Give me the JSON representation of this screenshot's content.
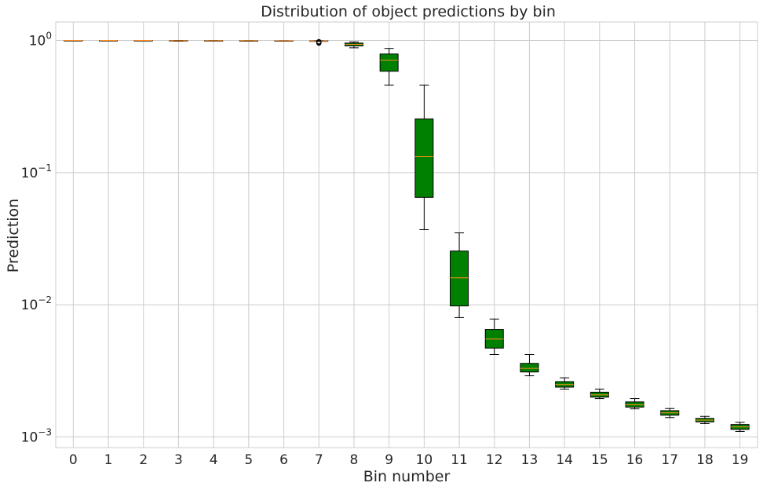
{
  "chart_data": {
    "type": "box",
    "title": "Distribution of object predictions by bin",
    "xlabel": "Bin number",
    "ylabel": "Prediction",
    "yscale": "log",
    "ylim": [
      0.00083,
      1.38
    ],
    "grid": true,
    "box_color": "#008000",
    "median_color": "#ff8c1a",
    "categories": [
      "0",
      "1",
      "2",
      "3",
      "4",
      "5",
      "6",
      "7",
      "8",
      "9",
      "10",
      "11",
      "12",
      "13",
      "14",
      "15",
      "16",
      "17",
      "18",
      "19"
    ],
    "y_ticks": [
      {
        "value": 1,
        "base": "10",
        "exp": "0"
      },
      {
        "value": 0.1,
        "base": "10",
        "exp": "−1"
      },
      {
        "value": 0.01,
        "base": "10",
        "exp": "−2"
      },
      {
        "value": 0.001,
        "base": "10",
        "exp": "−3"
      }
    ],
    "boxes": [
      {
        "bin": 0,
        "whislo": 0.9998,
        "q1": 0.9999,
        "med": 1.0,
        "q3": 1.0,
        "whishi": 1.0,
        "fliers": []
      },
      {
        "bin": 1,
        "whislo": 0.9997,
        "q1": 0.9998,
        "med": 0.9999,
        "q3": 1.0,
        "whishi": 1.0,
        "fliers": []
      },
      {
        "bin": 2,
        "whislo": 0.9996,
        "q1": 0.9997,
        "med": 0.9998,
        "q3": 0.9999,
        "whishi": 1.0,
        "fliers": []
      },
      {
        "bin": 3,
        "whislo": 0.989,
        "q1": 0.993,
        "med": 0.996,
        "q3": 0.998,
        "whishi": 1.0,
        "fliers": []
      },
      {
        "bin": 4,
        "whislo": 0.994,
        "q1": 0.995,
        "med": 0.996,
        "q3": 0.997,
        "whishi": 0.998,
        "fliers": []
      },
      {
        "bin": 5,
        "whislo": 0.993,
        "q1": 0.994,
        "med": 0.995,
        "q3": 0.996,
        "whishi": 0.997,
        "fliers": []
      },
      {
        "bin": 6,
        "whislo": 0.992,
        "q1": 0.993,
        "med": 0.994,
        "q3": 0.995,
        "whishi": 0.996,
        "fliers": []
      },
      {
        "bin": 7,
        "whislo": 0.985,
        "q1": 0.988,
        "med": 0.99,
        "q3": 0.993,
        "whishi": 0.996,
        "fliers": [
          0.955,
          0.962,
          0.968,
          0.974,
          0.979
        ]
      },
      {
        "bin": 8,
        "whislo": 0.88,
        "q1": 0.91,
        "med": 0.935,
        "q3": 0.955,
        "whishi": 0.975,
        "fliers": []
      },
      {
        "bin": 9,
        "whislo": 0.46,
        "q1": 0.585,
        "med": 0.71,
        "q3": 0.79,
        "whishi": 0.87,
        "fliers": []
      },
      {
        "bin": 10,
        "whislo": 0.037,
        "q1": 0.065,
        "med": 0.132,
        "q3": 0.255,
        "whishi": 0.46,
        "fliers": []
      },
      {
        "bin": 11,
        "whislo": 0.008,
        "q1": 0.0098,
        "med": 0.016,
        "q3": 0.0255,
        "whishi": 0.035,
        "fliers": []
      },
      {
        "bin": 12,
        "whislo": 0.0042,
        "q1": 0.0047,
        "med": 0.0055,
        "q3": 0.0065,
        "whishi": 0.0078,
        "fliers": []
      },
      {
        "bin": 13,
        "whislo": 0.0029,
        "q1": 0.0031,
        "med": 0.0033,
        "q3": 0.0036,
        "whishi": 0.0042,
        "fliers": []
      },
      {
        "bin": 14,
        "whislo": 0.0023,
        "q1": 0.00238,
        "med": 0.00249,
        "q3": 0.00262,
        "whishi": 0.0028,
        "fliers": []
      },
      {
        "bin": 15,
        "whislo": 0.00195,
        "q1": 0.002,
        "med": 0.00208,
        "q3": 0.00218,
        "whishi": 0.0023,
        "fliers": []
      },
      {
        "bin": 16,
        "whislo": 0.00163,
        "q1": 0.00168,
        "med": 0.00175,
        "q3": 0.00184,
        "whishi": 0.00195,
        "fliers": []
      },
      {
        "bin": 17,
        "whislo": 0.0014,
        "q1": 0.00146,
        "med": 0.00152,
        "q3": 0.00158,
        "whishi": 0.00164,
        "fliers": []
      },
      {
        "bin": 18,
        "whislo": 0.00126,
        "q1": 0.0013,
        "med": 0.00134,
        "q3": 0.00138,
        "whishi": 0.00143,
        "fliers": []
      },
      {
        "bin": 19,
        "whislo": 0.0011,
        "q1": 0.00114,
        "med": 0.00119,
        "q3": 0.00124,
        "whishi": 0.00129,
        "fliers": []
      }
    ]
  }
}
